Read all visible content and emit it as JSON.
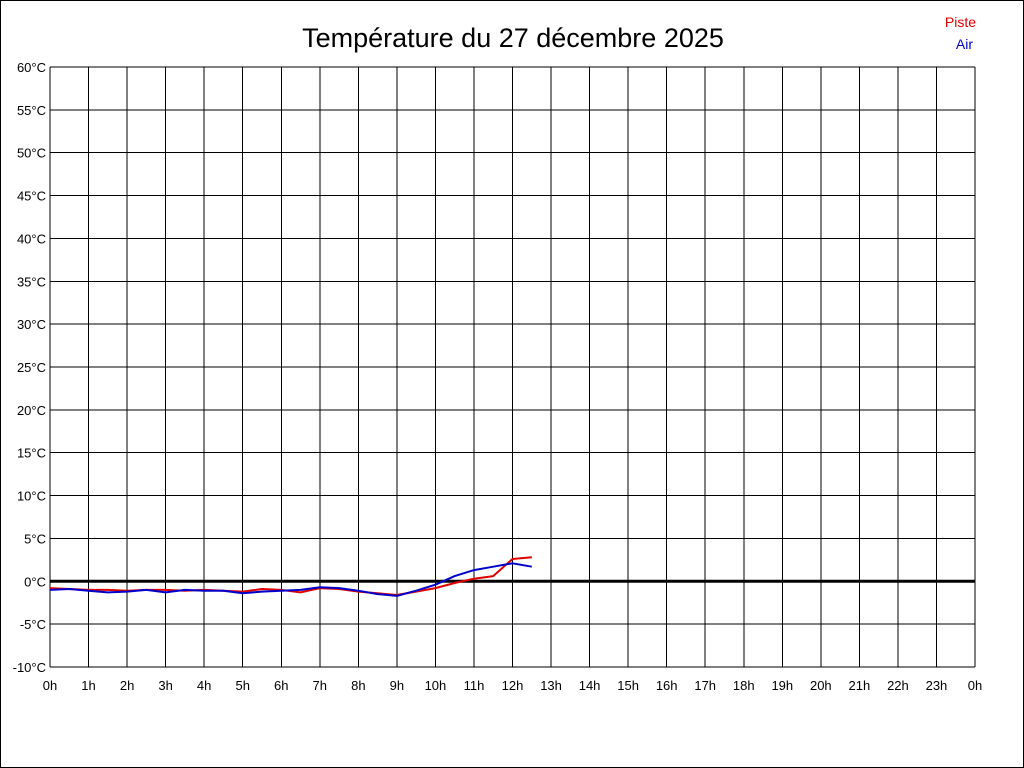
{
  "chart_data": {
    "type": "line",
    "title": "Température du 27 décembre 2025",
    "xlabel": "",
    "ylabel": "",
    "x_ticks": [
      "0h",
      "1h",
      "2h",
      "3h",
      "4h",
      "5h",
      "6h",
      "7h",
      "8h",
      "9h",
      "10h",
      "11h",
      "12h",
      "13h",
      "14h",
      "15h",
      "16h",
      "17h",
      "18h",
      "19h",
      "20h",
      "21h",
      "22h",
      "23h",
      "0h"
    ],
    "y_ticks": [
      "60°C",
      "55°C",
      "50°C",
      "45°C",
      "40°C",
      "35°C",
      "30°C",
      "25°C",
      "20°C",
      "15°C",
      "10°C",
      "5°C",
      "0°C",
      "-5°C",
      "-10°C"
    ],
    "xlim": [
      0,
      24
    ],
    "ylim": [
      -10,
      60
    ],
    "grid": true,
    "zero_line": true,
    "legend_position": "top-right",
    "series": [
      {
        "name": "Piste",
        "color": "#e00000",
        "x": [
          0,
          0.5,
          1,
          1.5,
          2,
          2.5,
          3,
          3.5,
          4,
          4.5,
          5,
          5.5,
          6,
          6.5,
          7,
          7.5,
          8,
          8.5,
          9,
          9.5,
          10,
          10.5,
          11,
          11.5,
          12,
          12.5
        ],
        "values": [
          -0.8,
          -0.9,
          -1.0,
          -1.0,
          -1.1,
          -1.0,
          -1.0,
          -1.1,
          -1.0,
          -1.1,
          -1.2,
          -0.9,
          -1.0,
          -1.3,
          -0.8,
          -0.9,
          -1.2,
          -1.4,
          -1.6,
          -1.2,
          -0.8,
          -0.2,
          0.3,
          0.6,
          2.6,
          2.8
        ]
      },
      {
        "name": "Air",
        "color": "#0000cc",
        "x": [
          0,
          0.5,
          1,
          1.5,
          2,
          2.5,
          3,
          3.5,
          4,
          4.5,
          5,
          5.5,
          6,
          6.5,
          7,
          7.5,
          8,
          8.5,
          9,
          9.5,
          10,
          10.5,
          11,
          11.5,
          12,
          12.5
        ],
        "values": [
          -1.0,
          -0.9,
          -1.1,
          -1.3,
          -1.2,
          -1.0,
          -1.3,
          -1.0,
          -1.1,
          -1.1,
          -1.4,
          -1.2,
          -1.1,
          -1.0,
          -0.7,
          -0.8,
          -1.1,
          -1.5,
          -1.7,
          -1.1,
          -0.4,
          0.6,
          1.3,
          1.7,
          2.1,
          1.7
        ]
      }
    ]
  }
}
